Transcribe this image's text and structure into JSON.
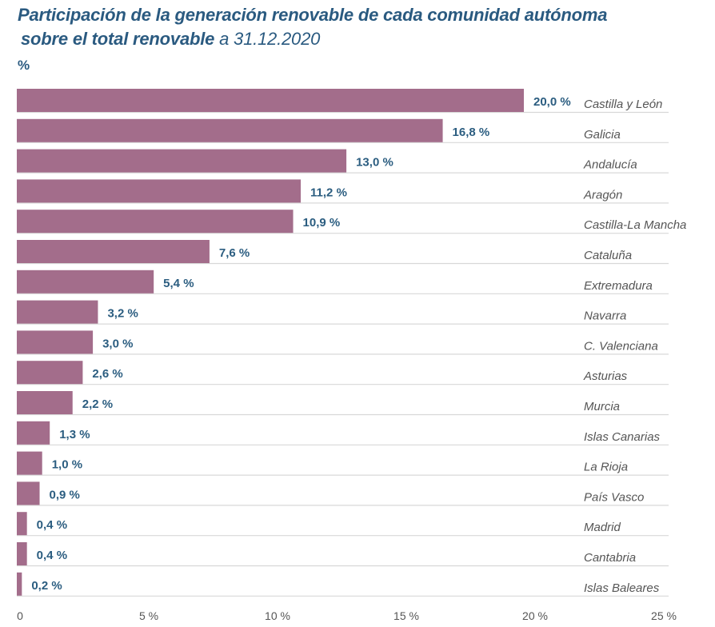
{
  "chart_data": {
    "type": "bar",
    "orientation": "horizontal",
    "title": "Participación de la generación renovable de cada comunidad autónoma",
    "title_line2_bold": "sobre el  total renovable",
    "title_line2_date": "a 31.12.2020",
    "unit_label": "%",
    "categories": [
      "Castilla y León",
      "Galicia",
      "Andalucía",
      "Aragón",
      "Castilla-La Mancha",
      "Cataluña",
      "Extremadura",
      "Navarra",
      "C. Valenciana",
      "Asturias",
      "Murcia",
      "Islas Canarias",
      "La Rioja",
      "País Vasco",
      "Madrid",
      "Cantabria",
      "Islas Baleares"
    ],
    "values": [
      20.0,
      16.8,
      13.0,
      11.2,
      10.9,
      7.6,
      5.4,
      3.2,
      3.0,
      2.6,
      2.2,
      1.3,
      1.0,
      0.9,
      0.4,
      0.4,
      0.2
    ],
    "value_labels": [
      "20,0 %",
      "16,8 %",
      "13,0 %",
      "11,2 %",
      "10,9 %",
      "7,6 %",
      "5,4 %",
      "3,2 %",
      "3,0 %",
      "2,6 %",
      "2,2 %",
      "1,3 %",
      "1,0 %",
      "0,9 %",
      "0,4 %",
      "0,4 %",
      "0,2 %"
    ],
    "xlim": [
      0,
      25
    ],
    "x_ticks": [
      0,
      5,
      10,
      15,
      20,
      25
    ],
    "x_tick_labels": [
      "0",
      "5 %",
      "10 %",
      "15 %",
      "20 %",
      "25 %"
    ],
    "grid": false,
    "legend": "none",
    "colors": {
      "bar": "#a36d8b",
      "value_label": "#2b5d80",
      "title": "#2a5a80",
      "separator": "#d8d8d8"
    }
  }
}
